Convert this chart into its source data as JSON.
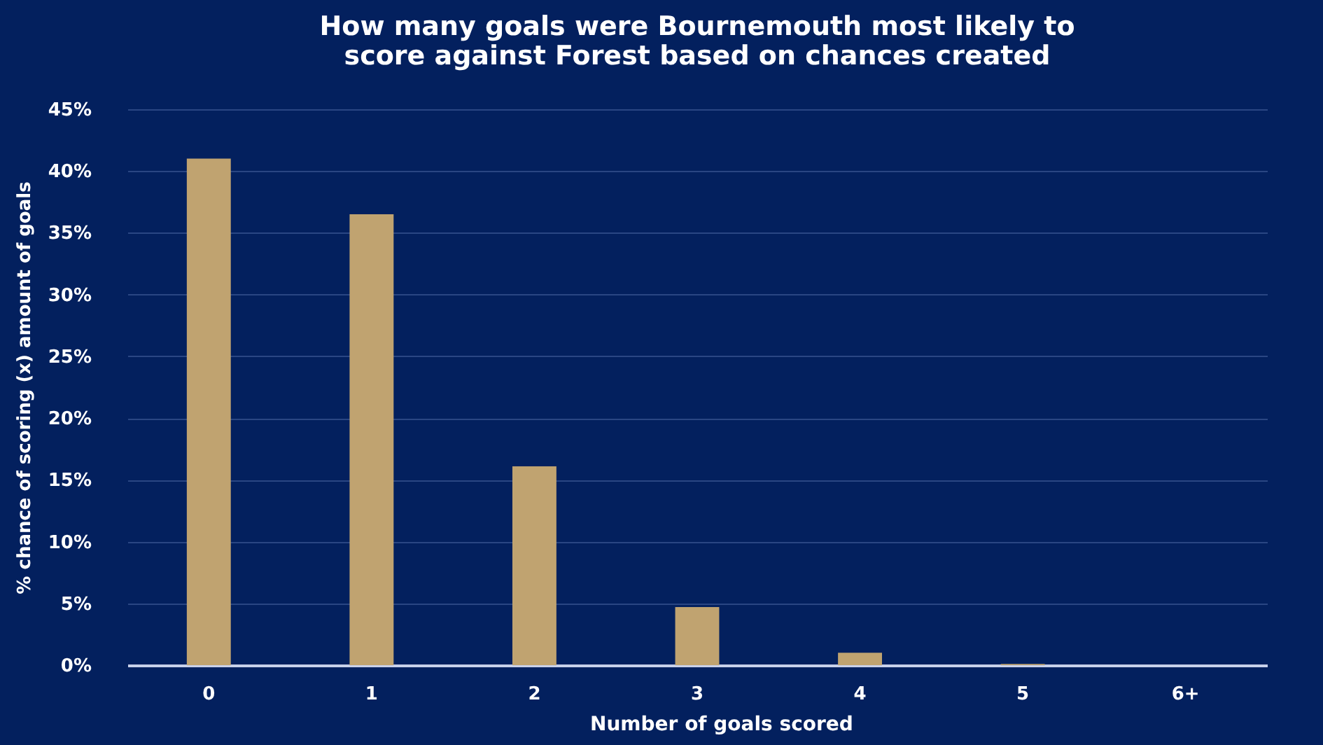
{
  "chart_data": {
    "type": "bar",
    "title": "How many goals were Bournemouth most likely to score against Forest based on chances created",
    "xlabel": "Number of goals scored",
    "ylabel": "% chance of scoring (x) amount of goals",
    "categories": [
      "0",
      "1",
      "2",
      "3",
      "4",
      "5",
      "6+"
    ],
    "values": [
      41,
      36.5,
      16.1,
      4.7,
      1.0,
      0.1,
      0
    ],
    "color": "#c0a370",
    "ylim": [
      0,
      45
    ],
    "yticks": [
      {
        "value": 0,
        "label": "0%"
      },
      {
        "value": 5,
        "label": "5%"
      },
      {
        "value": 10,
        "label": "10%"
      },
      {
        "value": 15,
        "label": "15%"
      },
      {
        "value": 20,
        "label": "20%"
      },
      {
        "value": 25,
        "label": "25%"
      },
      {
        "value": 30,
        "label": "30%"
      },
      {
        "value": 35,
        "label": "35%"
      },
      {
        "value": 40,
        "label": "40%"
      },
      {
        "value": 45,
        "label": "45%"
      }
    ],
    "grid": "y"
  }
}
